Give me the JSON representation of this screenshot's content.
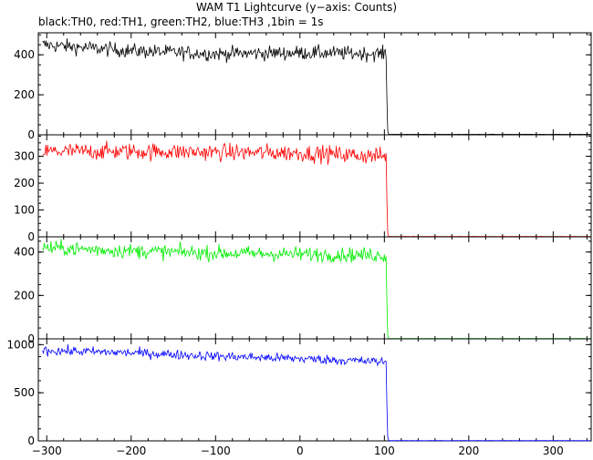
{
  "title": "WAM T1 Lightcurve (y−axis: Counts)",
  "subtitle": "black:TH0, red:TH1, green:TH2, blue:TH3 ,1bin = 1s",
  "chart_data": {
    "type": "line",
    "title": "WAM T1 Lightcurve (y−axis: Counts)",
    "subtitle": "black:TH0, red:TH1, green:TH2, blue:TH3 ,1bin = 1s",
    "xlim": [
      -310,
      345
    ],
    "x_ticks": [
      -300,
      -200,
      -100,
      0,
      100,
      200,
      300
    ],
    "x_tick_labels": [
      "−300",
      "−200",
      "−100",
      "0",
      "100",
      "200",
      "300"
    ],
    "bin": 1,
    "drop_time": 103,
    "ylabel": "Counts",
    "grid": false,
    "panels": [
      {
        "name": "TH0",
        "color": "#000000",
        "ylim": [
          0,
          510
        ],
        "y_ticks": [
          0,
          200,
          400
        ],
        "pre_trend": [
          [
            -305,
            450
          ],
          [
            -200,
            420
          ],
          [
            -100,
            405
          ],
          [
            0,
            410
          ],
          [
            103,
            405
          ]
        ],
        "noise": 18,
        "post_level": 2
      },
      {
        "name": "TH1",
        "color": "#ff0000",
        "ylim": [
          0,
          380
        ],
        "y_ticks": [
          0,
          100,
          200,
          300
        ],
        "pre_trend": [
          [
            -305,
            318
          ],
          [
            -200,
            318
          ],
          [
            -100,
            315
          ],
          [
            0,
            312
          ],
          [
            103,
            300
          ]
        ],
        "noise": 16,
        "post_level": 1
      },
      {
        "name": "TH2",
        "color": "#00ee00",
        "ylim": [
          0,
          470
        ],
        "y_ticks": [
          0,
          200,
          400
        ],
        "pre_trend": [
          [
            -305,
            420
          ],
          [
            -200,
            405
          ],
          [
            -100,
            395
          ],
          [
            0,
            390
          ],
          [
            103,
            385
          ]
        ],
        "noise": 17,
        "post_level": 1
      },
      {
        "name": "TH3",
        "color": "#0000ff",
        "ylim": [
          0,
          1060
        ],
        "y_ticks": [
          0,
          500,
          1000
        ],
        "pre_trend": [
          [
            -305,
            940
          ],
          [
            -200,
            915
          ],
          [
            -100,
            880
          ],
          [
            0,
            855
          ],
          [
            103,
            820
          ]
        ],
        "noise": 25,
        "post_level": 2
      }
    ]
  }
}
